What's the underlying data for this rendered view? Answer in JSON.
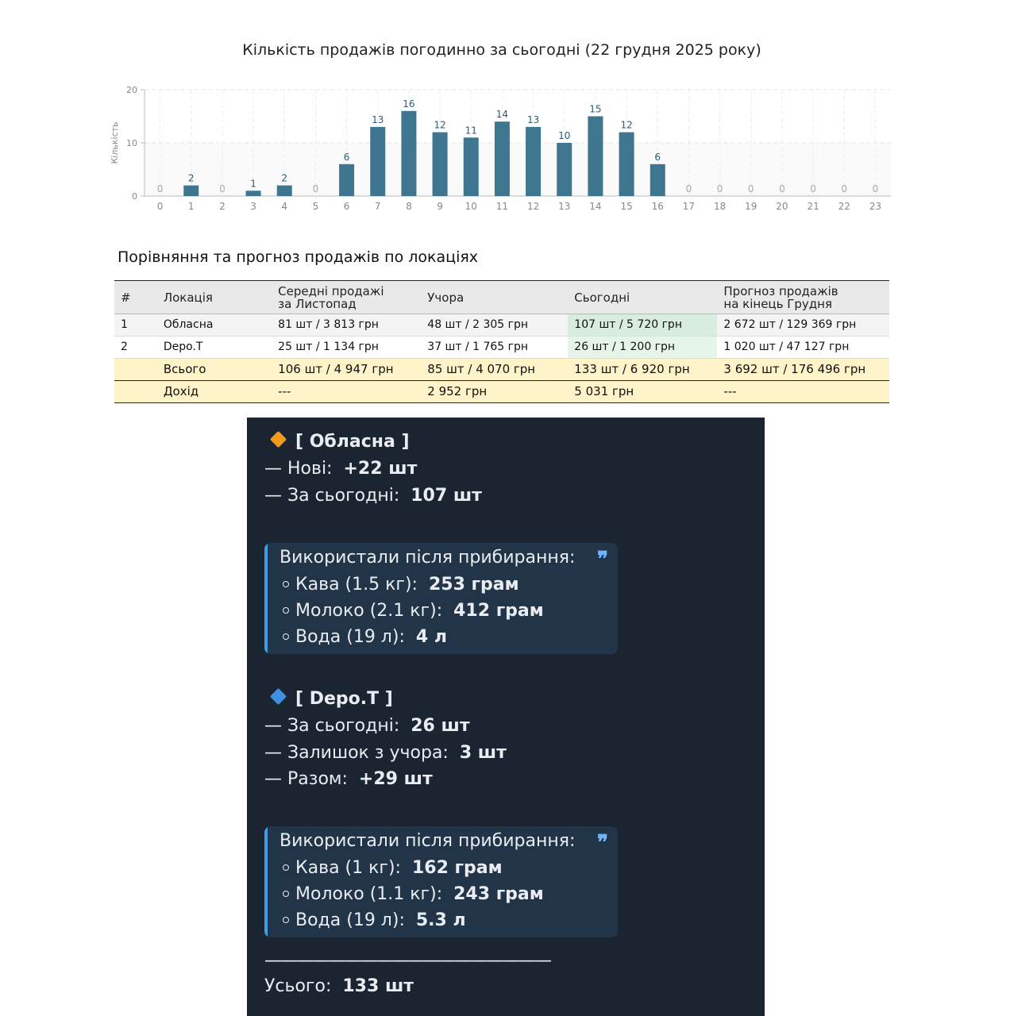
{
  "chart_data": {
    "type": "bar",
    "title": "Кількість продажів погодинно за сьогодні (22 грудня 2025 року)",
    "ylabel": "Кількість",
    "xlabel": "",
    "categories": [
      "0",
      "1",
      "2",
      "3",
      "4",
      "5",
      "6",
      "7",
      "8",
      "9",
      "10",
      "11",
      "12",
      "13",
      "14",
      "15",
      "16",
      "17",
      "18",
      "19",
      "20",
      "21",
      "22",
      "23"
    ],
    "values": [
      0,
      2,
      0,
      1,
      2,
      0,
      6,
      13,
      16,
      12,
      11,
      14,
      13,
      10,
      15,
      12,
      6,
      0,
      0,
      0,
      0,
      0,
      0,
      0
    ],
    "ylim": [
      0,
      20
    ],
    "yticks": [
      0,
      10,
      20
    ],
    "grid": true,
    "bar_color": "#3e7690",
    "label_color": "#2c5c78"
  },
  "table": {
    "title": "Порівняння та прогноз продажів по локаціях",
    "headers": [
      "#",
      "Локація",
      "Середні продажі\nза Листопад",
      "Учора",
      "Сьогодні",
      "Прогноз продажів\nна кінець Грудня"
    ],
    "headers_lines": [
      [
        "#"
      ],
      [
        "Локація"
      ],
      [
        "Середні продажі",
        "за Листопад"
      ],
      [
        "Учора"
      ],
      [
        "Сьогодні"
      ],
      [
        "Прогноз продажів",
        "на кінець Грудня"
      ]
    ],
    "rows": [
      [
        "1",
        "Обласна",
        "81 шт / 3 813 грн",
        "48 шт / 2 305 грн",
        "107 шт / 5 720 грн",
        "2 672 шт / 129 369 грн"
      ],
      [
        "2",
        "Depo.T",
        "25 шт / 1 134 грн",
        "37 шт / 1 765 грн",
        "26 шт / 1 200 грн",
        "1 020 шт / 47 127 грн"
      ]
    ],
    "total": [
      "",
      "Всього",
      "106 шт / 4 947 грн",
      "85 шт / 4 070 грн",
      "133 шт / 6 920 грн",
      "3 692 шт / 176 496 грн"
    ],
    "income": [
      "",
      "Дохід",
      "---",
      "2 952 грн",
      "5 031 грн",
      "---"
    ]
  },
  "telegram": {
    "loc1": {
      "title": "[ Обласна ]",
      "new_label": "— Нові:",
      "new_value": "+22 шт",
      "today_label": "— За сьогодні:",
      "today_value": "107 шт",
      "quote_title": "Використали після прибирання:",
      "items": [
        {
          "label": "Кава (1.5 кг):",
          "value": "253 грам"
        },
        {
          "label": "Молоко (2.1 кг):",
          "value": "412 грам"
        },
        {
          "label": "Вода (19 л):",
          "value": "4 л"
        }
      ]
    },
    "loc2": {
      "title": "[ Depo.T ]",
      "today_label": "— За сьогодні:",
      "today_value": "26 шт",
      "rest_label": "— Залишок з учора:",
      "rest_value": "3 шт",
      "sum_label": "— Разом:",
      "sum_value": "+29 шт",
      "quote_title": "Використали після прибирання:",
      "items": [
        {
          "label": "Кава (1 кг):",
          "value": "162 грам"
        },
        {
          "label": "Молоко (1.1 кг):",
          "value": "243 грам"
        },
        {
          "label": "Вода (19 л):",
          "value": "5.3 л"
        }
      ]
    },
    "separator": "——————————————————",
    "total_label": "Усього:",
    "total_value": "133 шт",
    "quote_icon": "quote-icon",
    "diamond1_color": "#f39a1e",
    "diamond2_color": "#3d8fe0"
  }
}
